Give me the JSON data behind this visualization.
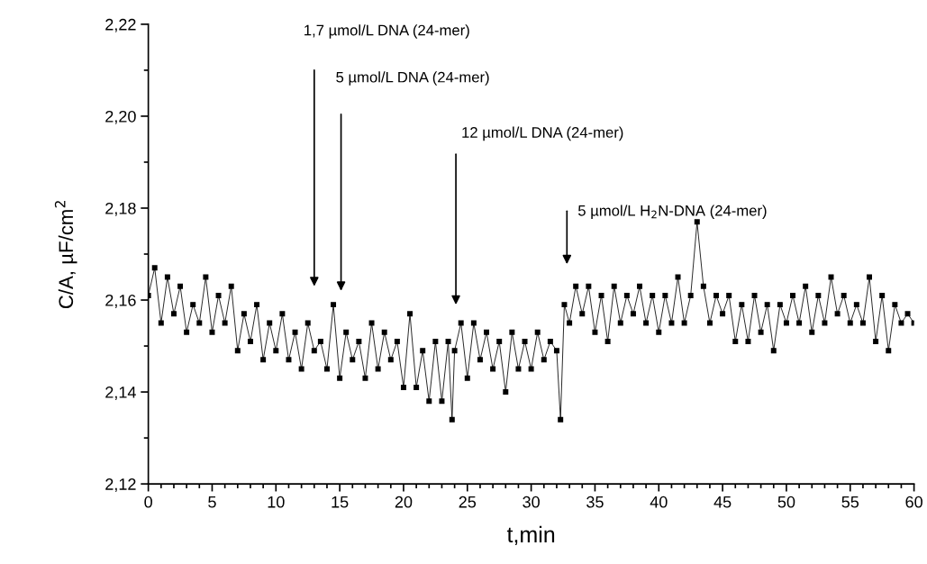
{
  "chart_data": {
    "type": "line",
    "xlabel": "t,min",
    "ylabel": "C/A, µF/cm$^{2}$",
    "x": [
      0,
      0.5,
      1,
      1.5,
      2,
      2.5,
      3,
      3.5,
      4,
      4.5,
      5,
      5.5,
      6,
      6.5,
      7,
      7.5,
      8,
      8.5,
      9,
      9.5,
      10,
      10.5,
      11,
      11.5,
      12,
      12.5,
      13,
      13.5,
      14,
      14.5,
      15,
      15.5,
      16,
      16.5,
      17,
      17.5,
      18,
      18.5,
      19,
      19.5,
      20,
      20.5,
      21,
      21.5,
      22,
      22.5,
      23,
      23.5,
      23.8,
      24,
      24.5,
      25,
      25.5,
      26,
      26.5,
      27,
      27.5,
      28,
      28.5,
      29,
      29.5,
      30,
      30.5,
      31,
      31.5,
      32,
      32.3,
      32.6,
      33,
      33.5,
      34,
      34.5,
      35,
      35.5,
      36,
      36.5,
      37,
      37.5,
      38,
      38.5,
      39,
      39.5,
      40,
      40.5,
      41,
      41.5,
      42,
      42.5,
      43,
      43.5,
      44,
      44.5,
      45,
      45.5,
      46,
      46.5,
      47,
      47.5,
      48,
      48.5,
      49,
      49.5,
      50,
      50.5,
      51,
      51.5,
      52,
      52.5,
      53,
      53.5,
      54,
      54.5,
      55,
      55.5,
      56,
      56.5,
      57,
      57.5,
      58,
      58.5,
      59,
      59.5,
      60
    ],
    "series": [
      {
        "color": "#000000",
        "values": [
          2.161,
          2.167,
          2.155,
          2.165,
          2.157,
          2.163,
          2.153,
          2.159,
          2.155,
          2.165,
          2.153,
          2.161,
          2.155,
          2.163,
          2.149,
          2.157,
          2.151,
          2.159,
          2.147,
          2.155,
          2.149,
          2.157,
          2.147,
          2.153,
          2.145,
          2.155,
          2.149,
          2.151,
          2.145,
          2.159,
          2.143,
          2.153,
          2.147,
          2.151,
          2.143,
          2.155,
          2.145,
          2.153,
          2.147,
          2.151,
          2.141,
          2.157,
          2.141,
          2.149,
          2.138,
          2.151,
          2.138,
          2.151,
          2.134,
          2.149,
          2.155,
          2.143,
          2.155,
          2.147,
          2.153,
          2.145,
          2.151,
          2.14,
          2.153,
          2.145,
          2.151,
          2.145,
          2.153,
          2.147,
          2.151,
          2.149,
          2.134,
          2.159,
          2.155,
          2.163,
          2.157,
          2.163,
          2.153,
          2.161,
          2.151,
          2.163,
          2.155,
          2.161,
          2.157,
          2.163,
          2.155,
          2.161,
          2.153,
          2.161,
          2.155,
          2.165,
          2.155,
          2.161,
          2.177,
          2.163,
          2.155,
          2.161,
          2.157,
          2.161,
          2.151,
          2.159,
          2.151,
          2.161,
          2.153,
          2.159,
          2.149,
          2.159,
          2.155,
          2.161,
          2.155,
          2.163,
          2.153,
          2.161,
          2.155,
          2.165,
          2.157,
          2.161,
          2.155,
          2.159,
          2.155,
          2.165,
          2.151,
          2.161,
          2.149,
          2.159,
          2.155,
          2.157,
          2.155
        ]
      }
    ],
    "marker": "square",
    "line_style": "solid",
    "grid": false,
    "legend": false,
    "xlim": [
      0,
      60
    ],
    "xticks": [
      0,
      {
        "value": 1,
        "label": null
      },
      {
        "value": 2,
        "label": null
      },
      {
        "value": 3,
        "label": null
      },
      {
        "value": 4,
        "label": null
      },
      5,
      {
        "value": 6,
        "label": null
      },
      {
        "value": 7,
        "label": null
      },
      {
        "value": 8,
        "label": null
      },
      {
        "value": 9,
        "label": null
      },
      10,
      {
        "value": 11,
        "label": null
      },
      {
        "value": 12,
        "label": null
      },
      {
        "value": 13,
        "label": null
      },
      {
        "value": 14,
        "label": null
      },
      15,
      {
        "value": 16,
        "label": null
      },
      {
        "value": 17,
        "label": null
      },
      {
        "value": 18,
        "label": null
      },
      {
        "value": 19,
        "label": null
      },
      20,
      {
        "value": 21,
        "label": null
      },
      {
        "value": 22,
        "label": null
      },
      {
        "value": 23,
        "label": null
      },
      {
        "value": 24,
        "label": null
      },
      25,
      {
        "value": 26,
        "label": null
      },
      {
        "value": 27,
        "label": null
      },
      {
        "value": 28,
        "label": null
      },
      {
        "value": 29,
        "label": null
      },
      30,
      {
        "value": 31,
        "label": null
      },
      {
        "value": 32,
        "label": null
      },
      {
        "value": 33,
        "label": null
      },
      {
        "value": 34,
        "label": null
      },
      35,
      {
        "value": 36,
        "label": null
      },
      {
        "value": 37,
        "label": null
      },
      {
        "value": 38,
        "label": null
      },
      {
        "value": 39,
        "label": null
      },
      40,
      {
        "value": 41,
        "label": null
      },
      {
        "value": 42,
        "label": null
      },
      {
        "value": 43,
        "label": null
      },
      {
        "value": 44,
        "label": null
      },
      45,
      {
        "value": 46,
        "label": null
      },
      {
        "value": 47,
        "label": null
      },
      {
        "value": 48,
        "label": null
      },
      {
        "value": 49,
        "label": null
      },
      50,
      {
        "value": 51,
        "label": null
      },
      {
        "value": 52,
        "label": null
      },
      {
        "value": 53,
        "label": null
      },
      {
        "value": 54,
        "label": null
      },
      55,
      {
        "value": 56,
        "label": null
      },
      {
        "value": 57,
        "label": null
      },
      {
        "value": 58,
        "label": null
      },
      {
        "value": 59,
        "label": null
      },
      60
    ],
    "ylim": [
      2.12,
      2.22
    ],
    "yticks": [
      {
        "value": 2.12,
        "label": "2,12"
      },
      {
        "value": 2.13,
        "label": null
      },
      {
        "value": 2.14,
        "label": "2,14"
      },
      {
        "value": 2.15,
        "label": null
      },
      {
        "value": 2.16,
        "label": "2,16"
      },
      {
        "value": 2.17,
        "label": null
      },
      {
        "value": 2.18,
        "label": "2,18"
      },
      {
        "value": 2.19,
        "label": null
      },
      {
        "value": 2.2,
        "label": "2,20"
      },
      {
        "value": 2.21,
        "label": null
      },
      {
        "value": 2.22,
        "label": "2,22"
      }
    ],
    "annotations": [
      "1,7 µmol/L DNA (24-mer)",
      "5 µmol/L DNA (24-mer)",
      "12 µmol/L DNA (24-mer)",
      "5 µmol/L H$_{2}$N-DNA (24-mer)"
    ]
  }
}
